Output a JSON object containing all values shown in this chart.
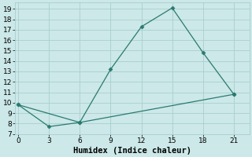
{
  "line1_x": [
    0,
    6,
    9,
    12,
    15,
    18,
    21
  ],
  "line1_y": [
    9.8,
    8.1,
    13.2,
    17.3,
    19.1,
    14.8,
    10.8
  ],
  "line2_x": [
    0,
    3,
    6,
    21
  ],
  "line2_y": [
    9.8,
    7.7,
    8.1,
    10.8
  ],
  "line_color": "#2a7a6f",
  "bg_color": "#cce8e8",
  "grid_color": "#aacece",
  "xlabel": "Humidex (Indice chaleur)",
  "xlim": [
    -0.3,
    22.5
  ],
  "ylim": [
    7,
    19.6
  ],
  "xticks": [
    0,
    3,
    6,
    9,
    12,
    15,
    18,
    21
  ],
  "yticks": [
    7,
    8,
    9,
    10,
    11,
    12,
    13,
    14,
    15,
    16,
    17,
    18,
    19
  ],
  "marker": "D",
  "marker_size": 2.5,
  "linewidth": 0.9,
  "xlabel_fontsize": 7.5,
  "tick_fontsize": 6.5
}
